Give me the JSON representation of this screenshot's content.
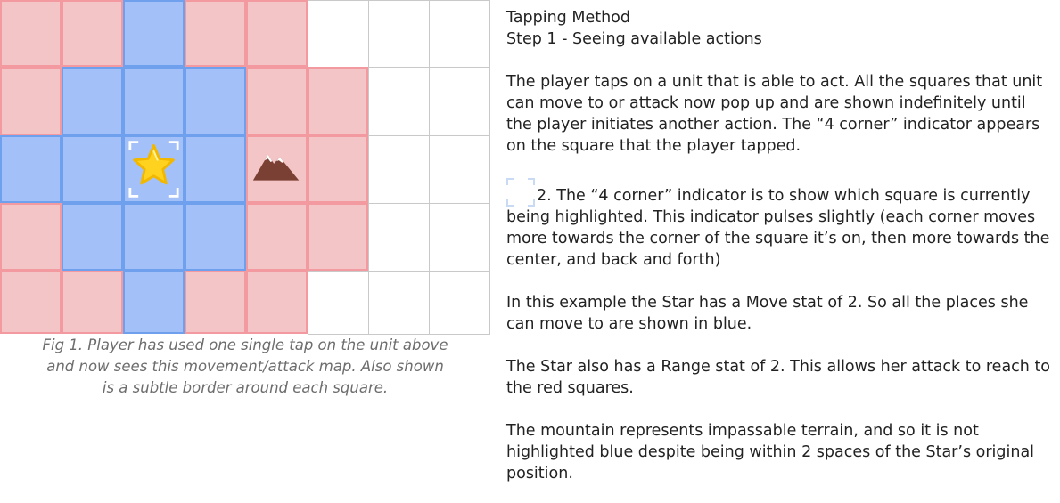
{
  "grid": {
    "cols": 8,
    "rows": 5,
    "cells": [
      [
        "attack",
        "attack",
        "move",
        "attack",
        "attack",
        "empty",
        "empty",
        "empty"
      ],
      [
        "attack",
        "move",
        "move",
        "move",
        "attack",
        "attack",
        "empty",
        "empty"
      ],
      [
        "move",
        "move",
        "move",
        "move",
        "attack",
        "attack",
        "empty",
        "empty"
      ],
      [
        "attack",
        "move",
        "move",
        "move",
        "attack",
        "attack",
        "empty",
        "empty"
      ],
      [
        "attack",
        "attack",
        "move",
        "attack",
        "attack",
        "empty",
        "empty",
        "empty"
      ]
    ],
    "unit": {
      "name": "Star",
      "icon": "star-icon",
      "col": 2,
      "row": 2
    },
    "terrain": {
      "name": "mountain",
      "icon": "mountain-icon",
      "col": 4,
      "row": 2
    },
    "colors": {
      "move_fill": "#a3c1f8",
      "move_border": "#6fa0ee",
      "attack_fill": "#f4c5c6",
      "attack_border": "#f39aa0",
      "grid_line": "#c9c9c9",
      "star": "#ffd21f",
      "mountain": "#7a4034",
      "indicator": "#ffffff"
    }
  },
  "caption": {
    "line1": "Fig 1. Player has used one single tap on the unit above",
    "line2": "and now sees this movement/attack map. Also shown",
    "line3": "is a subtle border around each square."
  },
  "description": {
    "title1": "Tapping Method",
    "title2": "Step 1 - Seeing available actions",
    "para1": "The player taps on a unit that is able to act.  All the squares that unit can move to or attack now pop up and are shown indefinitely until the player initiates another action.  The “4 corner” indicator appears on the square that the player tapped.",
    "para2": "2. The “4 corner” indicator is to show which square is currently being highlighted. This indicator pulses slightly (each corner moves more towards the corner of the square it’s on, then more towards the center, and back and forth)",
    "para3": "In this example the Star has a Move stat of 2.  So all the places she can move to are shown in blue.",
    "para4": "The Star also has a Range stat of 2.  This allows her attack to reach to the red squares.",
    "para5": "The mountain represents impassable terrain, and so it is not highlighted blue despite being within 2 spaces of the Star’s original position."
  }
}
